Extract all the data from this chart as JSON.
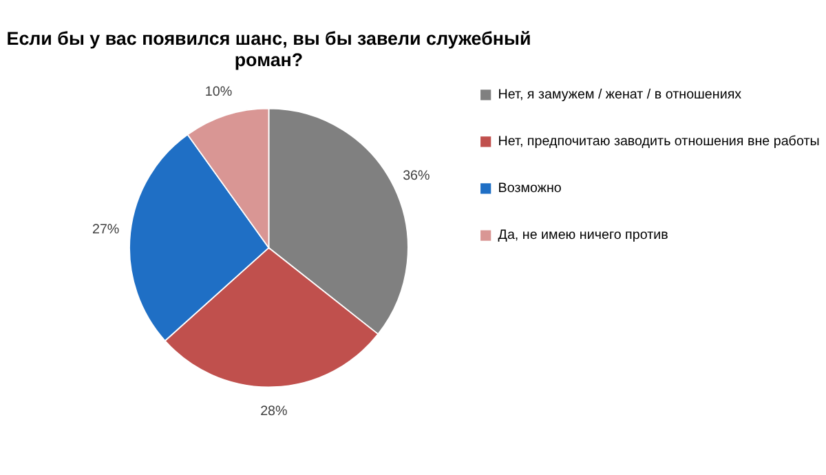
{
  "chart_data": {
    "type": "pie",
    "title": "Если бы у вас появился шанс, вы бы завели служебный роман?",
    "categories": [
      "Нет, я замужем / женат / в отношениях",
      "Нет, предпочитаю заводить отношения вне работы",
      "Возможно",
      "Да, не имею ничего против"
    ],
    "values": [
      36,
      28,
      27,
      10
    ],
    "colors": [
      "#808080",
      "#c0504d",
      "#1f6fc5",
      "#d99694"
    ],
    "value_labels": [
      "36%",
      "28%",
      "27%",
      "10%"
    ],
    "legend": "right"
  }
}
